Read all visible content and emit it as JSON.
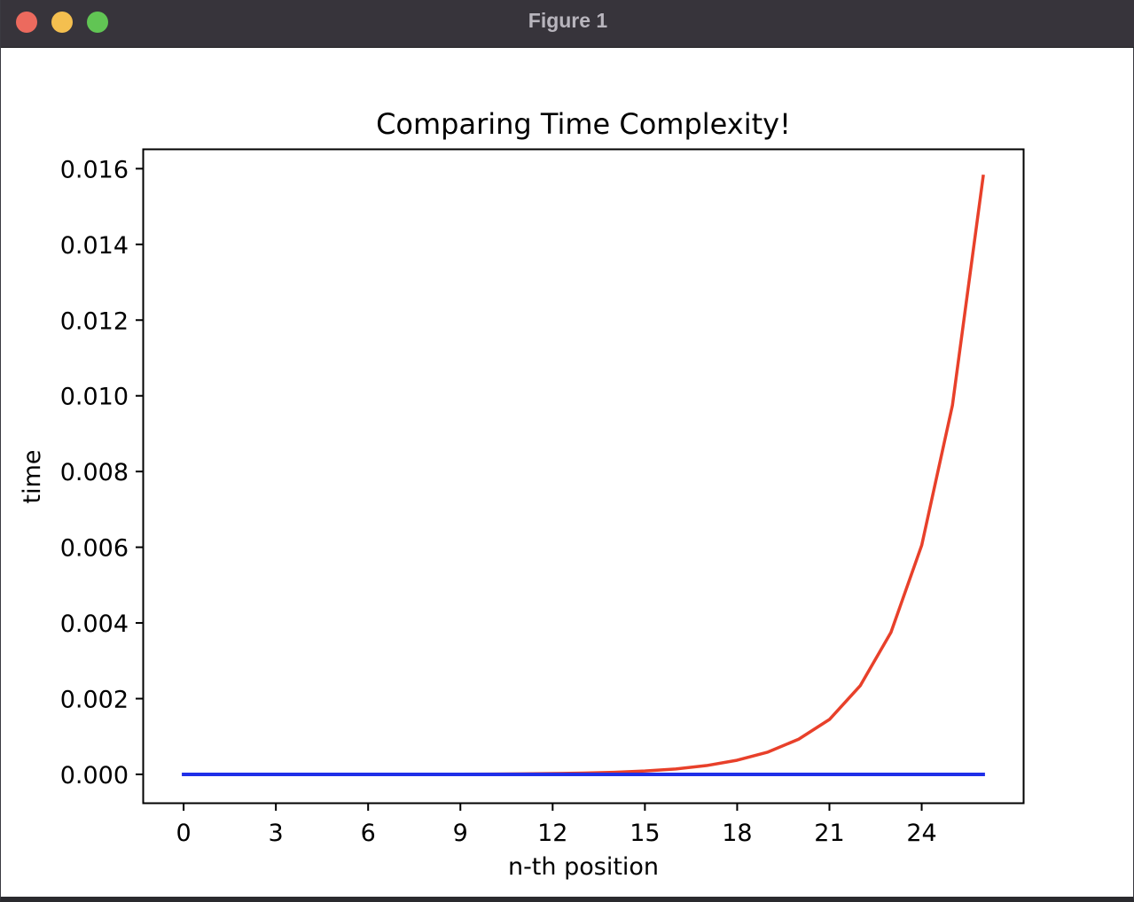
{
  "window": {
    "title": "Figure 1"
  },
  "colors": {
    "titlebar": "#37343b",
    "close": "#ec6a5e",
    "minimize": "#f4bf4f",
    "maximize": "#61c554"
  },
  "chart_data": {
    "type": "line",
    "title": "Comparing Time Complexity!",
    "xlabel": "n-th position",
    "ylabel": "time",
    "xlim": [
      -1.3,
      27.3
    ],
    "ylim": [
      -0.00075,
      0.0165
    ],
    "xticks": [
      0,
      3,
      6,
      9,
      12,
      15,
      18,
      21,
      24
    ],
    "xtick_labels": [
      "0",
      "3",
      "6",
      "9",
      "12",
      "15",
      "18",
      "21",
      "24"
    ],
    "yticks": [
      0,
      0.002,
      0.004,
      0.006,
      0.008,
      0.01,
      0.012,
      0.014,
      0.016
    ],
    "ytick_labels": [
      "0.000",
      "0.002",
      "0.004",
      "0.006",
      "0.008",
      "0.010",
      "0.012",
      "0.014",
      "0.016"
    ],
    "grid": false,
    "legend": false,
    "x": [
      0,
      1,
      2,
      3,
      4,
      5,
      6,
      7,
      8,
      9,
      10,
      11,
      12,
      13,
      14,
      15,
      16,
      17,
      18,
      19,
      20,
      21,
      22,
      23,
      24,
      25,
      26
    ],
    "series": [
      {
        "color": "#e8402a",
        "values": [
          0,
          0,
          0,
          0,
          0,
          1e-06,
          1e-06,
          2e-06,
          3e-06,
          5e-06,
          8e-06,
          1.3e-05,
          2.1e-05,
          3.4e-05,
          5.5e-05,
          8.9e-05,
          0.000143,
          0.000232,
          0.000374,
          0.000589,
          0.00093,
          0.00145,
          0.00234,
          0.00375,
          0.00605,
          0.00975,
          0.0158
        ]
      },
      {
        "color": "#1f2fe8",
        "values": [
          0,
          0,
          0,
          0,
          0,
          0,
          0,
          0,
          0,
          0,
          0,
          0,
          0,
          0,
          0,
          0,
          0,
          0,
          0,
          0,
          0,
          0,
          0,
          0,
          0,
          0,
          0
        ]
      }
    ]
  }
}
